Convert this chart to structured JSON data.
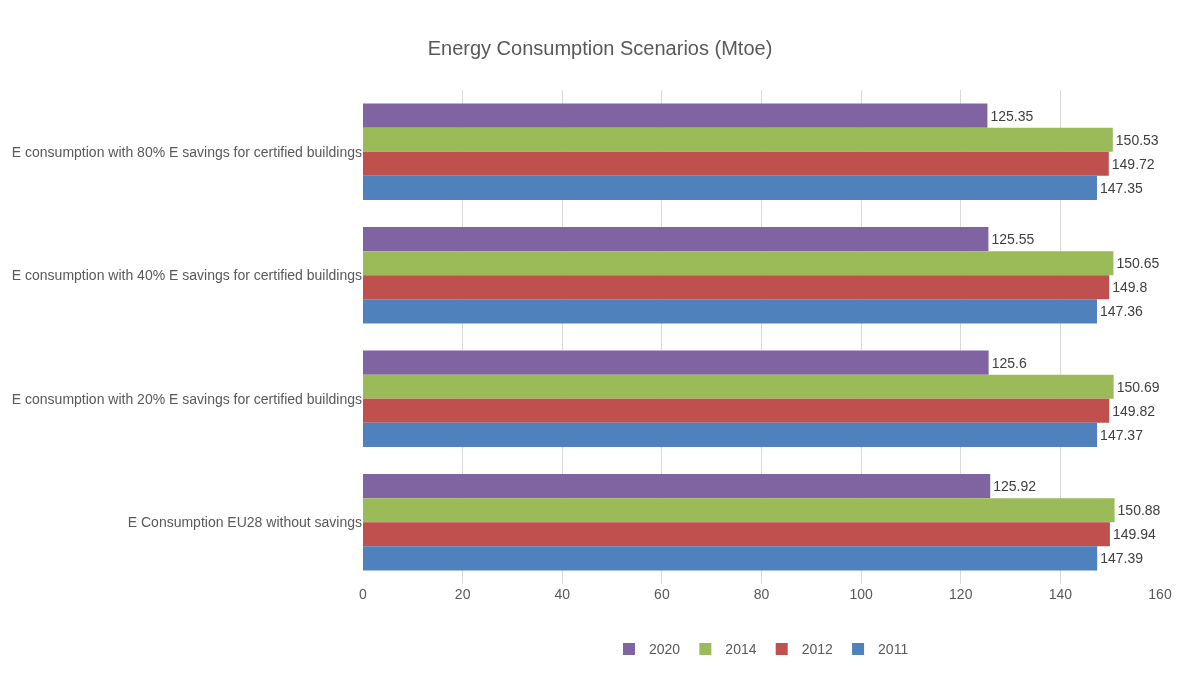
{
  "chart_data": {
    "type": "bar",
    "orientation": "horizontal",
    "title": "Energy Consumption Scenarios (Mtoe)",
    "categories": [
      "E consumption with 80% E savings for certified buildings",
      "E consumption with 40% E savings for certified buildings",
      "E consumption with 20% E savings for certified buildings",
      "E Consumption EU28 without savings"
    ],
    "series": [
      {
        "name": "2020",
        "color": "#8064a2",
        "values": [
          125.35,
          125.55,
          125.6,
          125.92
        ]
      },
      {
        "name": "2014",
        "color": "#9bbb59",
        "values": [
          150.53,
          150.65,
          150.69,
          150.88
        ]
      },
      {
        "name": "2012",
        "color": "#c0504d",
        "values": [
          149.72,
          149.8,
          149.82,
          149.94
        ]
      },
      {
        "name": "2011",
        "color": "#4f81bd",
        "values": [
          147.35,
          147.36,
          147.37,
          147.39
        ]
      }
    ],
    "xlim": [
      0,
      160
    ],
    "xticks": [
      0,
      20,
      40,
      60,
      80,
      100,
      120,
      140,
      160
    ],
    "grid": "x",
    "legend": "bottom",
    "data_labels": true
  }
}
